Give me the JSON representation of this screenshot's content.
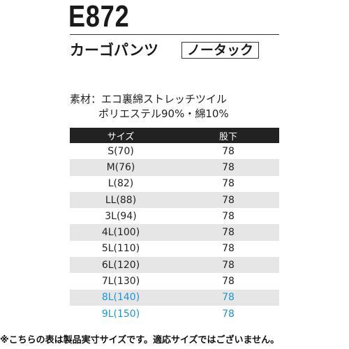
{
  "product": {
    "code": "E872",
    "name": "カーゴパンツ",
    "tuck": "ノータック"
  },
  "material": {
    "line1": "素材：エコ裏綿ストレッチツイル",
    "line2": "ポリエステル90%・綿10%"
  },
  "table": {
    "headers": [
      "サイズ",
      "股下"
    ],
    "rows": [
      {
        "size": "S(70)",
        "inseam": "78"
      },
      {
        "size": "M(76)",
        "inseam": "78"
      },
      {
        "size": "L(82)",
        "inseam": "78"
      },
      {
        "size": "LL(88)",
        "inseam": "78"
      },
      {
        "size": "3L(94)",
        "inseam": "78"
      },
      {
        "size": "4L(100)",
        "inseam": "78"
      },
      {
        "size": "5L(110)",
        "inseam": "78"
      },
      {
        "size": "6L(120)",
        "inseam": "78"
      },
      {
        "size": "7L(130)",
        "inseam": "78"
      },
      {
        "size": "8L(140)",
        "inseam": "78"
      },
      {
        "size": "9L(150)",
        "inseam": "78"
      }
    ]
  },
  "colors": {
    "header_bg": "#222222",
    "alt_row_bg": "#e6e6e6",
    "highlight_text": "#1d96d4"
  },
  "note": "※こちらの表は製品実寸サイズです。適応サイズではございません。"
}
